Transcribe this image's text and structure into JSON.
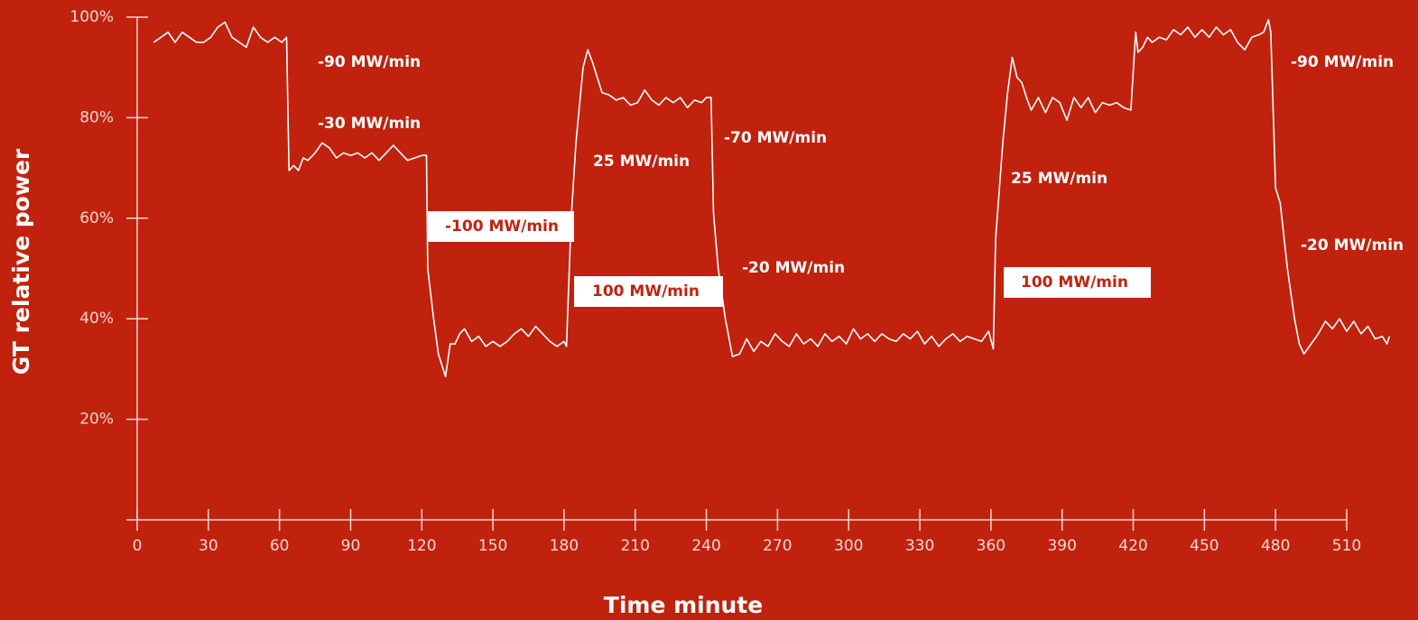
{
  "chart_data": {
    "type": "line",
    "ylabel": "GT relative power",
    "xlabel": "Time minute",
    "xlim": [
      0,
      510
    ],
    "ylim": [
      0,
      100
    ],
    "xticks": [
      0,
      30,
      60,
      90,
      120,
      150,
      180,
      210,
      240,
      270,
      300,
      330,
      360,
      390,
      420,
      450,
      480,
      510
    ],
    "yticks": [
      {
        "value": 20,
        "label": "20%"
      },
      {
        "value": 40,
        "label": "40%"
      },
      {
        "value": 60,
        "label": "60%"
      },
      {
        "value": 80,
        "label": "80%"
      },
      {
        "value": 100,
        "label": "100%"
      }
    ],
    "color": "#ffffff",
    "x": [
      7,
      10,
      13,
      16,
      19,
      22,
      25,
      28,
      31,
      34,
      37,
      40,
      43,
      46,
      49,
      52,
      55,
      58,
      61,
      63,
      64,
      66,
      68,
      70,
      72,
      75,
      78,
      81,
      84,
      87,
      90,
      93,
      96,
      99,
      102,
      105,
      108,
      111,
      114,
      117,
      120,
      122,
      122.5,
      125,
      127,
      130,
      132,
      134,
      136,
      138,
      141,
      144,
      147,
      150,
      153,
      156,
      159,
      162,
      165,
      168,
      171,
      174,
      177,
      180,
      181,
      183,
      185,
      188,
      190,
      192,
      194,
      196,
      199,
      202,
      205,
      208,
      211,
      214,
      217,
      220,
      223,
      226,
      229,
      232,
      235,
      238,
      240,
      242,
      243,
      245,
      248,
      251,
      254,
      257,
      260,
      263,
      266,
      269,
      272,
      275,
      278,
      281,
      284,
      287,
      290,
      293,
      296,
      299,
      302,
      305,
      308,
      311,
      314,
      317,
      320,
      323,
      326,
      329,
      332,
      335,
      338,
      341,
      344,
      347,
      350,
      353,
      356,
      359,
      361,
      362,
      365,
      367,
      369,
      371,
      373,
      375,
      377,
      380,
      383,
      386,
      389,
      392,
      395,
      398,
      401,
      404,
      407,
      410,
      413,
      416,
      419,
      421,
      422,
      424,
      426,
      428,
      431,
      434,
      437,
      440,
      443,
      446,
      449,
      452,
      455,
      458,
      461,
      464,
      467,
      470,
      473,
      475,
      477,
      478,
      480,
      482,
      485,
      488,
      490,
      492,
      495,
      498,
      501,
      504,
      507,
      510,
      513,
      516,
      519,
      522,
      525,
      527,
      528
    ],
    "values": [
      95,
      96,
      97,
      95,
      97,
      96,
      95,
      95,
      96,
      98,
      99,
      96,
      95,
      94,
      98,
      96,
      95,
      96,
      95,
      96,
      69.5,
      70.5,
      69.5,
      72,
      71.5,
      73,
      75,
      74,
      72,
      73,
      72.5,
      73,
      72,
      73,
      71.5,
      73,
      74.5,
      73,
      71.5,
      72,
      72.5,
      72.5,
      50,
      40,
      33,
      28.5,
      35,
      35,
      37,
      38,
      35.5,
      36.5,
      34.5,
      35.5,
      34.5,
      35.5,
      37,
      38,
      36.5,
      38.5,
      37,
      35.5,
      34.5,
      35.5,
      34.5,
      60,
      75,
      90,
      93.5,
      91,
      88,
      85,
      84.5,
      83.5,
      84,
      82.5,
      83,
      85.5,
      83.5,
      82.5,
      84,
      83,
      84,
      82,
      83.5,
      83,
      84,
      84,
      61,
      50,
      40,
      32.5,
      33,
      36,
      33.5,
      35.5,
      34.5,
      37,
      35.5,
      34.5,
      37,
      35,
      36,
      34.5,
      37,
      35.5,
      36.5,
      35,
      38,
      36,
      37,
      35.5,
      37,
      36,
      35.5,
      37,
      36,
      37.5,
      35,
      36.5,
      34.5,
      36,
      37,
      35.5,
      36.5,
      36,
      35.5,
      37.5,
      34,
      56,
      75,
      85,
      92,
      88,
      87,
      84,
      81.5,
      84,
      81,
      84,
      83,
      79.5,
      84,
      82,
      84,
      81,
      83,
      82.5,
      83,
      82,
      81.5,
      97,
      93,
      94,
      96,
      95,
      96,
      95.5,
      97.5,
      96.5,
      98,
      96,
      97.5,
      96,
      98,
      96.5,
      97.5,
      95,
      93.5,
      96,
      96.5,
      97,
      99.5,
      97,
      66,
      63,
      50,
      40,
      35,
      33,
      35,
      37,
      39.5,
      38,
      40,
      37.5,
      39.5,
      37,
      38.5,
      36,
      36.5,
      35,
      36.5
    ],
    "annotations": [
      "-90 MW/min",
      "-30 MW/min",
      "-100 MW/min",
      "25 MW/min",
      "100 MW/min",
      "-70 MW/min",
      "-20 MW/min",
      "25 MW/min",
      "100 MW/min",
      "-90 MW/min",
      "-20 MW/min"
    ]
  }
}
